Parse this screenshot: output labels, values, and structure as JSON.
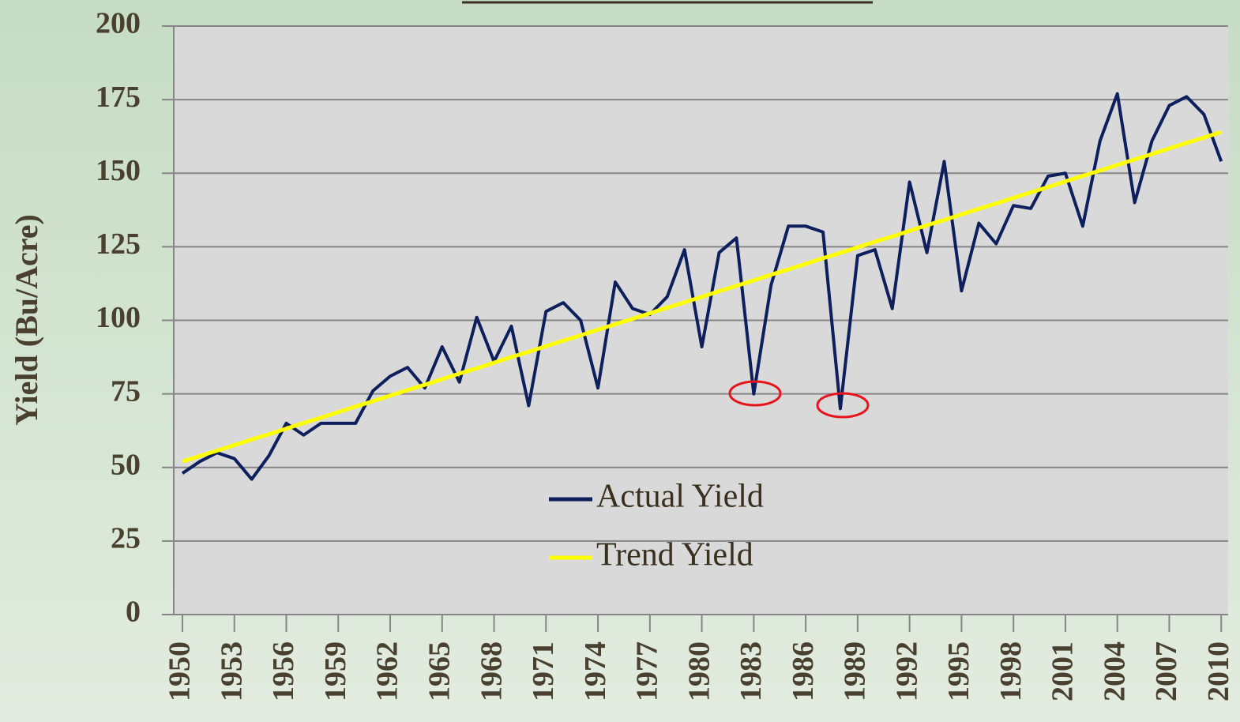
{
  "chart_data": {
    "type": "line",
    "y_label": "Yield (Bu/Acre)",
    "x": [
      1950,
      1951,
      1952,
      1953,
      1954,
      1955,
      1956,
      1957,
      1958,
      1959,
      1960,
      1961,
      1962,
      1963,
      1964,
      1965,
      1966,
      1967,
      1968,
      1969,
      1970,
      1971,
      1972,
      1973,
      1974,
      1975,
      1976,
      1977,
      1978,
      1979,
      1980,
      1981,
      1982,
      1983,
      1984,
      1985,
      1986,
      1987,
      1988,
      1989,
      1990,
      1991,
      1992,
      1993,
      1994,
      1995,
      1996,
      1997,
      1998,
      1999,
      2000,
      2001,
      2002,
      2003,
      2004,
      2005,
      2006,
      2007,
      2008,
      2009,
      2010
    ],
    "series": [
      {
        "name": "Actual Yield",
        "color": "#0d1f5c",
        "values": [
          48,
          52,
          55,
          53,
          46,
          54,
          65,
          61,
          65,
          65,
          65,
          76,
          81,
          84,
          77,
          91,
          79,
          101,
          86,
          98,
          71,
          103,
          106,
          100,
          77,
          113,
          104,
          102,
          108,
          124,
          91,
          123,
          128,
          75,
          112,
          132,
          132,
          130,
          70,
          122,
          124,
          104,
          147,
          123,
          154,
          110,
          133,
          126,
          139,
          138,
          149,
          150,
          132,
          161,
          177,
          140,
          161,
          173,
          176,
          170,
          154
        ]
      },
      {
        "name": "Trend Yield",
        "color": "#ffff00",
        "values": [
          52.0,
          53.9,
          55.7,
          57.6,
          59.5,
          61.3,
          63.2,
          65.1,
          66.9,
          68.8,
          70.7,
          72.5,
          74.4,
          76.3,
          78.1,
          80.0,
          81.9,
          83.7,
          85.6,
          87.5,
          89.3,
          91.2,
          93.1,
          94.9,
          96.8,
          98.7,
          100.5,
          102.4,
          104.3,
          106.1,
          108.0,
          109.9,
          111.7,
          113.6,
          115.5,
          117.3,
          119.2,
          121.1,
          122.9,
          124.8,
          126.7,
          128.5,
          130.4,
          132.3,
          134.1,
          136.0,
          137.9,
          139.7,
          141.6,
          143.5,
          145.3,
          147.2,
          149.1,
          150.9,
          152.8,
          154.7,
          156.5,
          158.4,
          160.3,
          162.1,
          164.0
        ]
      }
    ],
    "xlim": [
      1949.5,
      2010.4
    ],
    "xticks": [
      1950,
      1953,
      1956,
      1959,
      1962,
      1965,
      1968,
      1971,
      1974,
      1977,
      1980,
      1983,
      1986,
      1989,
      1992,
      1995,
      1998,
      2001,
      2004,
      2007,
      2010
    ],
    "ylim": [
      0,
      200
    ],
    "yticks": [
      0,
      25,
      50,
      75,
      100,
      125,
      150,
      175,
      200
    ],
    "grid": true
  }
}
